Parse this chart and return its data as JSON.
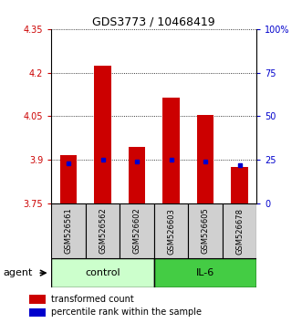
{
  "title": "GDS3773 / 10468419",
  "samples": [
    "GSM526561",
    "GSM526562",
    "GSM526602",
    "GSM526603",
    "GSM526605",
    "GSM526678"
  ],
  "transformed_counts": [
    3.915,
    4.225,
    3.945,
    4.115,
    4.055,
    3.875
  ],
  "percentile_ranks": [
    23,
    25,
    24,
    25,
    24,
    22
  ],
  "ylim": [
    3.75,
    4.35
  ],
  "y_ticks": [
    3.75,
    3.9,
    4.05,
    4.2,
    4.35
  ],
  "y2_ticks": [
    0,
    25,
    50,
    75,
    100
  ],
  "y2_tick_labels": [
    "0",
    "25",
    "50",
    "75",
    "100%"
  ],
  "bar_color": "#cc0000",
  "dot_color": "#0000cc",
  "bar_width": 0.5,
  "baseline": 3.75,
  "legend_items": [
    "transformed count",
    "percentile rank within the sample"
  ],
  "agent_label": "agent",
  "group_label_control": "control",
  "group_label_il6": "IL-6",
  "control_color": "#ccffcc",
  "il6_color": "#44cc44",
  "sample_box_color": "#d0d0d0",
  "title_fontsize": 9,
  "tick_fontsize": 7,
  "label_fontsize": 7,
  "legend_fontsize": 7
}
